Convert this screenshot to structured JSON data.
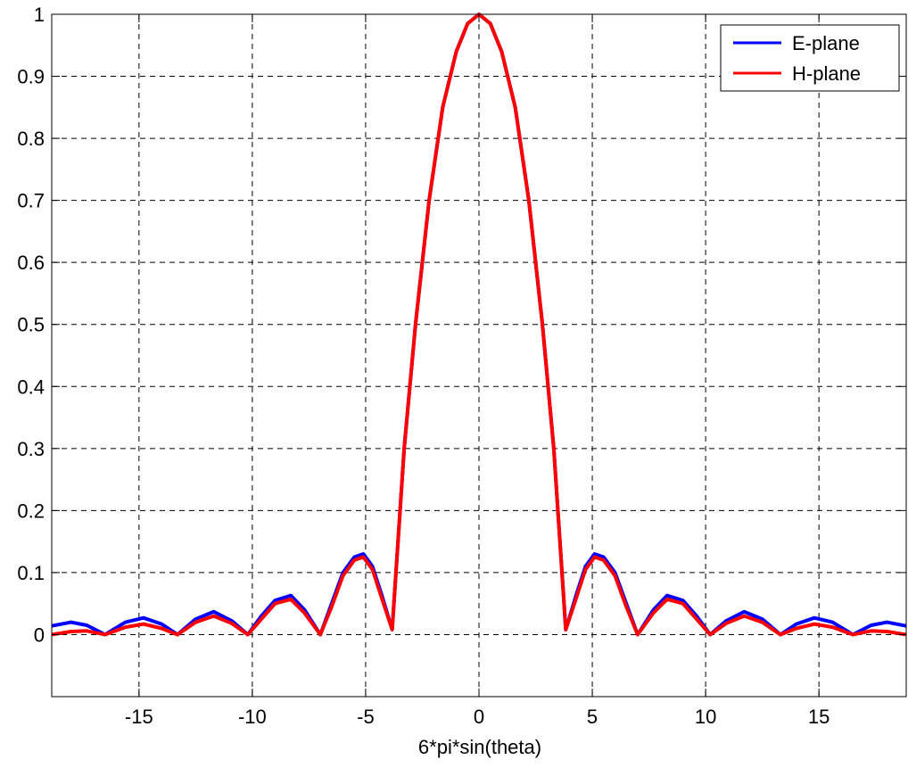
{
  "chart_data": {
    "type": "line",
    "title": "",
    "xlabel": "6*pi*sin(theta)",
    "ylabel": "",
    "xlim": [
      -18.85,
      18.85
    ],
    "ylim": [
      -0.1,
      1.0
    ],
    "xticks": [
      -15,
      -10,
      -5,
      0,
      5,
      10,
      15
    ],
    "yticks": [
      0,
      0.1,
      0.2,
      0.3,
      0.4,
      0.5,
      0.6,
      0.7,
      0.8,
      0.9,
      1
    ],
    "grid": true,
    "legend": "top-right",
    "series": [
      {
        "name": "E-plane",
        "color": "#0000ff",
        "x": [
          -18.85,
          -18.0,
          -17.3,
          -16.5,
          -15.6,
          -14.8,
          -14.0,
          -13.3,
          -12.5,
          -11.7,
          -10.9,
          -10.2,
          -9.6,
          -9.0,
          -8.3,
          -7.7,
          -7.0,
          -6.5,
          -6.0,
          -5.5,
          -5.1,
          -4.7,
          -4.3,
          -3.83,
          -3.3,
          -2.8,
          -2.2,
          -1.6,
          -1.0,
          -0.5,
          0.0,
          0.5,
          1.0,
          1.6,
          2.2,
          2.8,
          3.3,
          3.83,
          4.3,
          4.7,
          5.1,
          5.5,
          6.0,
          6.5,
          7.0,
          7.7,
          8.3,
          9.0,
          9.6,
          10.2,
          10.9,
          11.7,
          12.5,
          13.3,
          14.0,
          14.8,
          15.6,
          16.5,
          17.3,
          18.0,
          18.85
        ],
        "y": [
          0.014,
          0.02,
          0.015,
          0.0,
          0.02,
          0.027,
          0.017,
          0.0,
          0.025,
          0.037,
          0.022,
          0.0,
          0.03,
          0.055,
          0.063,
          0.04,
          0.0,
          0.05,
          0.1,
          0.125,
          0.13,
          0.11,
          0.065,
          0.008,
          0.3,
          0.5,
          0.7,
          0.85,
          0.94,
          0.985,
          1.0,
          0.985,
          0.94,
          0.85,
          0.7,
          0.5,
          0.3,
          0.008,
          0.065,
          0.11,
          0.13,
          0.125,
          0.1,
          0.05,
          0.0,
          0.04,
          0.063,
          0.055,
          0.03,
          0.0,
          0.022,
          0.037,
          0.025,
          0.0,
          0.017,
          0.027,
          0.02,
          0.0,
          0.015,
          0.02,
          0.014
        ]
      },
      {
        "name": "H-plane",
        "color": "#ff0000",
        "x": [
          -18.85,
          -18.0,
          -17.3,
          -16.5,
          -15.6,
          -14.8,
          -14.0,
          -13.3,
          -12.5,
          -11.7,
          -10.9,
          -10.2,
          -9.6,
          -9.0,
          -8.3,
          -7.7,
          -7.0,
          -6.5,
          -6.0,
          -5.5,
          -5.1,
          -4.7,
          -4.3,
          -3.83,
          -3.3,
          -2.8,
          -2.2,
          -1.6,
          -1.0,
          -0.5,
          0.0,
          0.5,
          1.0,
          1.6,
          2.2,
          2.8,
          3.3,
          3.83,
          4.3,
          4.7,
          5.1,
          5.5,
          6.0,
          6.5,
          7.0,
          7.7,
          8.3,
          9.0,
          9.6,
          10.2,
          10.9,
          11.7,
          12.5,
          13.3,
          14.0,
          14.8,
          15.6,
          16.5,
          17.3,
          18.0,
          18.85
        ],
        "y": [
          0.0,
          0.005,
          0.006,
          0.0,
          0.012,
          0.017,
          0.01,
          0.0,
          0.02,
          0.03,
          0.018,
          0.0,
          0.025,
          0.05,
          0.057,
          0.035,
          0.0,
          0.045,
          0.095,
          0.12,
          0.125,
          0.105,
          0.06,
          0.008,
          0.3,
          0.5,
          0.7,
          0.85,
          0.94,
          0.985,
          1.0,
          0.985,
          0.94,
          0.85,
          0.7,
          0.5,
          0.3,
          0.008,
          0.06,
          0.105,
          0.125,
          0.12,
          0.095,
          0.045,
          0.0,
          0.035,
          0.057,
          0.05,
          0.025,
          0.0,
          0.018,
          0.03,
          0.02,
          0.0,
          0.01,
          0.017,
          0.012,
          0.0,
          0.006,
          0.005,
          0.0
        ]
      }
    ]
  }
}
